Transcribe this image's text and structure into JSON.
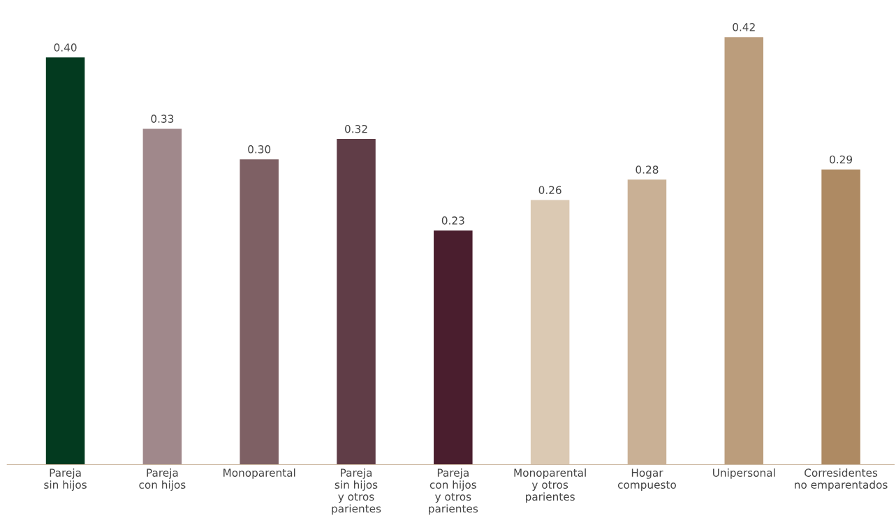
{
  "chart_data": {
    "type": "bar",
    "categories": [
      "Pareja\nsin hijos",
      "Pareja\ncon hijos",
      "Monoparental",
      "Pareja\nsin hijos\ny otros\nparientes",
      "Pareja\ncon hijos\ny otros\nparientes",
      "Monoparental\ny otros\nparientes",
      "Hogar\ncompuesto",
      "Unipersonal",
      "Corresidentes\nno emparentados"
    ],
    "values": [
      0.4,
      0.33,
      0.3,
      0.32,
      0.23,
      0.26,
      0.28,
      0.42,
      0.29
    ],
    "value_labels": [
      "0.40",
      "0.33",
      "0.30",
      "0.32",
      "0.23",
      "0.26",
      "0.28",
      "0.42",
      "0.29"
    ],
    "colors": [
      "#033a1f",
      "#a0888b",
      "#7e6064",
      "#603d47",
      "#4a1e2e",
      "#dbc9b3",
      "#c9b095",
      "#bb9d7c",
      "#ae8a63"
    ],
    "tick_labels": "x",
    "grid": false,
    "legend": false
  }
}
